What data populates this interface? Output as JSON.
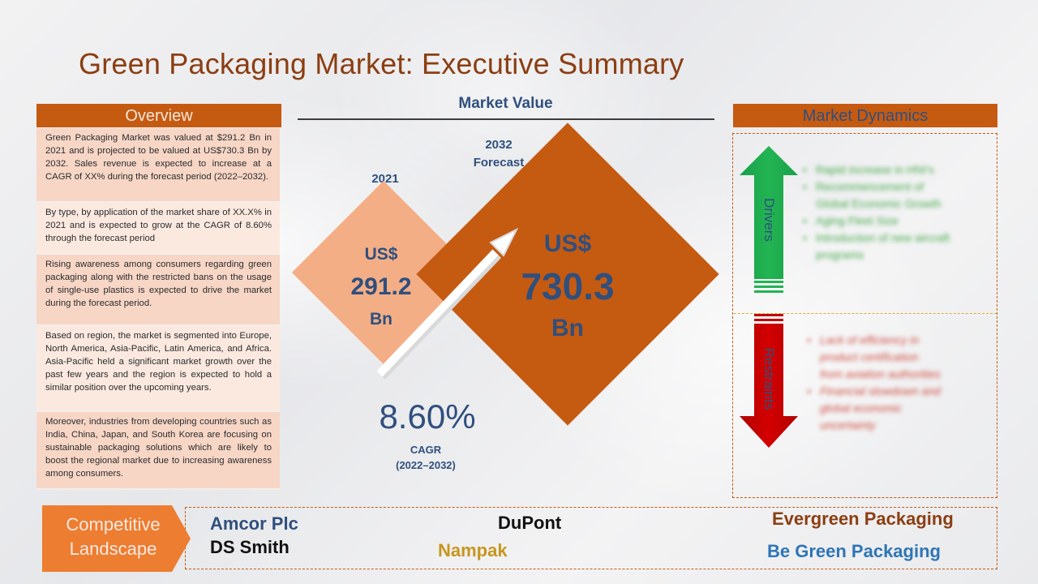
{
  "title": "Green Packaging Market: Executive Summary",
  "overview": {
    "header": "Overview",
    "items": [
      "Green Packaging Market was valued at $291.2 Bn in 2021 and is projected to be valued at US$730.3 Bn by 2032. Sales revenue is expected to increase at a CAGR of XX% during the forecast period (2022–2032).",
      "By type, by application of the market share of XX.X% in 2021 and is expected to grow at the CAGR of 8.60% through the forecast period",
      "Rising awareness among consumers regarding green packaging along with the restricted bans on the usage of single-use plastics is expected to drive the market during the forecast period.",
      "Based on region, the market is segmented into Europe, North America, Asia-Pacific, Latin America, and Africa. Asia-Pacific held a significant market growth over the past few years and the region is expected to hold a similar position over the upcoming years.",
      "Moreover, industries from developing countries such as India, China, Japan, and South Korea are focusing on sustainable packaging solutions which are likely to boost the regional market due to increasing awareness among consumers."
    ]
  },
  "market_value": {
    "title": "Market Value",
    "year_2021": "2021",
    "year_2032_line1": "2032",
    "year_2032_line2": "Forecast",
    "v2021": {
      "currency": "US$",
      "value": "291.2",
      "unit": "Bn"
    },
    "v2032": {
      "currency": "US$",
      "value": "730.3",
      "unit": "Bn"
    },
    "cagr_value": "8.60%",
    "cagr_label": "CAGR",
    "cagr_period": "(2022–2032)"
  },
  "market_dynamics": {
    "header": "Market Dynamics",
    "drivers_label": "Drivers",
    "restraints_label": "Restraints",
    "drivers": [
      [
        "Rapid increase in HNI's"
      ],
      [
        "Recommencement of",
        "Global Economic Growth"
      ],
      [
        "Aging Fleet Size"
      ],
      [
        "Introduction of new aircraft",
        "programs"
      ]
    ],
    "restraints": [
      [
        "Lack of efficiency in",
        "product certification",
        "from aviation authorities"
      ],
      [
        "Financial slowdown and",
        "global economic",
        "uncertainty"
      ]
    ]
  },
  "competitive": {
    "label_line1": "Competitive",
    "label_line2": "Landscape",
    "companies": {
      "amcor": "Amcor Plc",
      "ds_smith": "DS Smith",
      "dupont": "DuPont",
      "nampak": "Nampak",
      "evergreen": "Evergreen Packaging",
      "be_green": "Be Green Packaging"
    }
  },
  "colors": {
    "accent_orange": "#c55a11",
    "light_orange": "#f3ae86",
    "navy": "#2f4f7e",
    "title_brown": "#8b3e12",
    "driver_green": "#1fa84a",
    "restraint_red": "#c00000",
    "nampak_gold": "#c8961e",
    "evergreen_brown": "#8b3e12"
  }
}
